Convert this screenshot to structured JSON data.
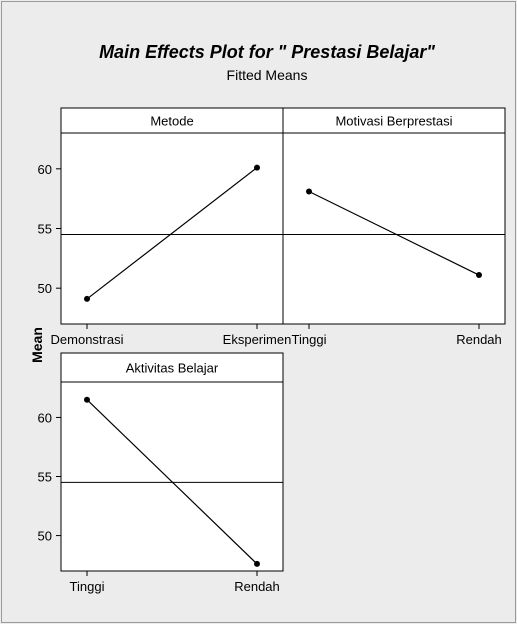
{
  "chart_data": {
    "type": "line",
    "title": "Main Effects Plot for \" Prestasi Belajar\"",
    "subtitle": "Fitted Means",
    "ylabel": "Mean",
    "ylim": [
      47,
      63
    ],
    "yticks": [
      "50",
      "55",
      "60"
    ],
    "reference_mean": 54.5,
    "panels": [
      {
        "name": "Metode",
        "categories": [
          "Demonstrasi",
          "Eksperimen"
        ],
        "values": [
          49.1,
          60.1
        ]
      },
      {
        "name": "Motivasi Berprestasi",
        "categories": [
          "Tinggi",
          "Rendah"
        ],
        "values": [
          58.1,
          51.1
        ]
      },
      {
        "name": "Aktivitas Belajar",
        "categories": [
          "Tinggi",
          "Rendah"
        ],
        "values": [
          61.5,
          47.6
        ]
      }
    ],
    "colors": {
      "background": "#ececec",
      "plot": "#ffffff",
      "line": "#000000"
    }
  }
}
